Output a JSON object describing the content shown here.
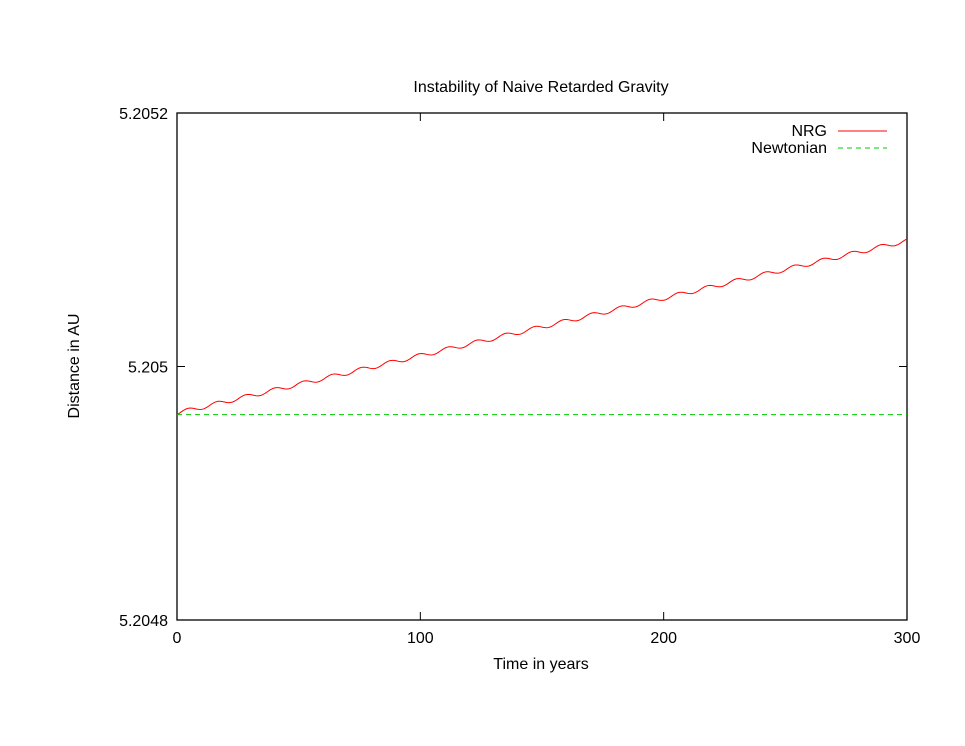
{
  "chart_data": {
    "type": "line",
    "title": "Instability of Naive Retarded Gravity",
    "xlabel": "Time in years",
    "ylabel": "Distance in AU",
    "xlim": [
      0,
      300
    ],
    "ylim": [
      5.2048,
      5.2052
    ],
    "x_ticks": [
      0,
      100,
      200,
      300
    ],
    "x_tick_labels": [
      "0",
      "100",
      "200",
      "300"
    ],
    "y_ticks": [
      5.2048,
      5.205,
      5.2052
    ],
    "y_tick_labels": [
      "5.2048",
      "5.205",
      "5.2052"
    ],
    "grid": false,
    "legend_position": "top-right",
    "series": [
      {
        "name": "NRG",
        "color": "#ff0000",
        "style": "solid",
        "start": [
          0,
          5.204962
        ],
        "end": [
          300,
          5.205098
        ],
        "oscillation_period_years": 11.86,
        "oscillation_amplitude_au": 2.5e-06
      },
      {
        "name": "Newtonian",
        "color": "#00cc00",
        "style": "dashed",
        "start": [
          0,
          5.204962
        ],
        "end": [
          300,
          5.204962
        ]
      }
    ]
  }
}
